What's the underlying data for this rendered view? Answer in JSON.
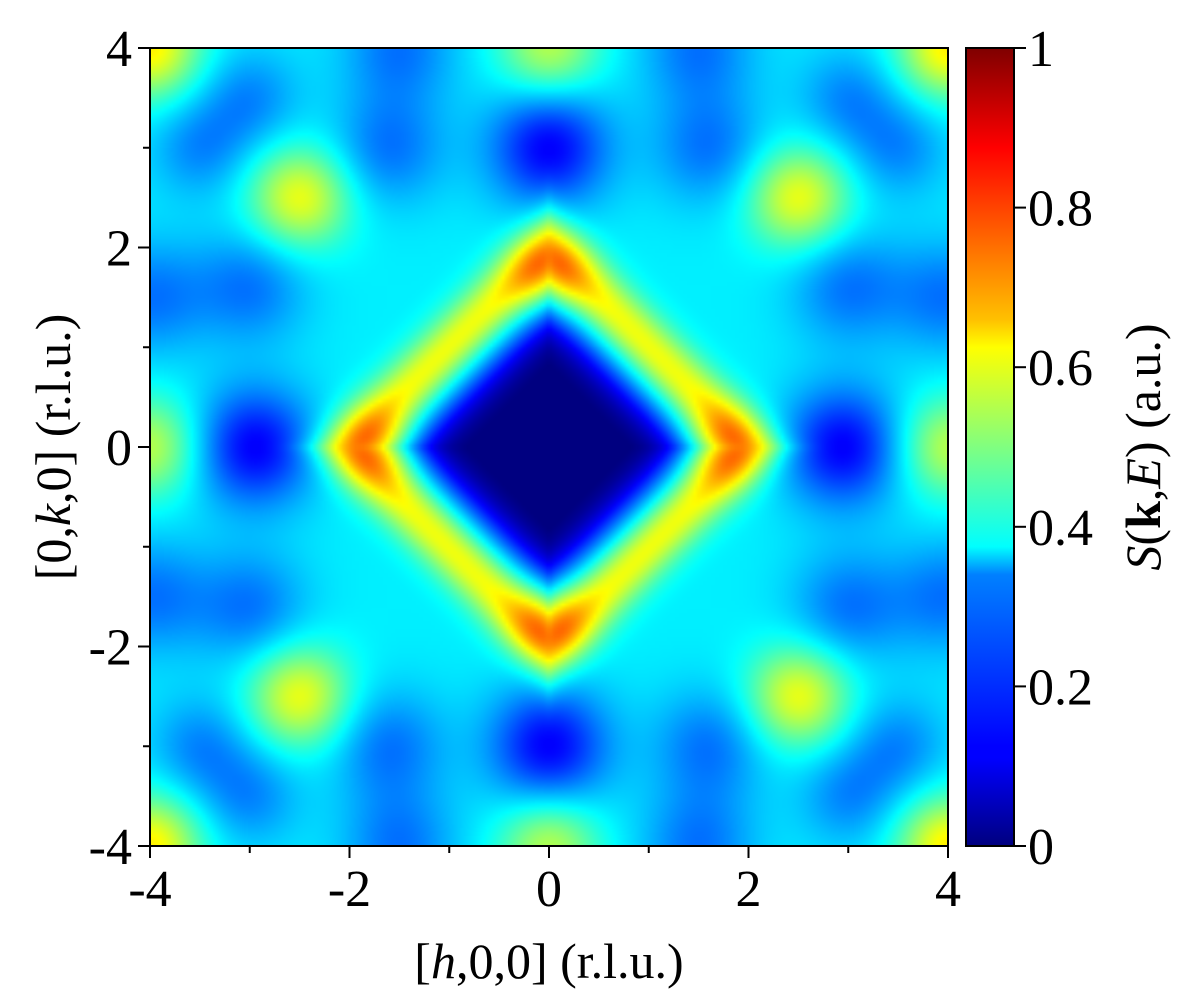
{
  "chart_data": {
    "type": "heatmap",
    "title": "",
    "xlabel": {
      "prefix": "[",
      "var": "h",
      "suffix": ",0,0] (r.l.u.)"
    },
    "ylabel": {
      "prefix": "[0,",
      "var": "k",
      "suffix": ",0] (r.l.u.)"
    },
    "colorbar_label": {
      "s": "S",
      "open": "(",
      "k": "k",
      "comma": ",",
      "e": "E",
      "close": ")",
      "unit": " (a.u.)"
    },
    "xlim": [
      -4,
      4
    ],
    "ylim": [
      -4,
      4
    ],
    "x_ticks": [
      "-4",
      "-2",
      "0",
      "2",
      "4"
    ],
    "y_ticks": [
      "-4",
      "-2",
      "0",
      "2",
      "4"
    ],
    "x_tick_values": [
      -4,
      -2,
      0,
      2,
      4
    ],
    "y_tick_values": [
      -4,
      -2,
      0,
      2,
      4
    ],
    "minor_tick_values": [
      -3,
      -1,
      1,
      3
    ],
    "colorbar": {
      "range": [
        0,
        1
      ],
      "ticks": [
        "0",
        "0.2",
        "0.4",
        "0.6",
        "0.8",
        "1"
      ],
      "tick_values": [
        0,
        0.2,
        0.4,
        0.6,
        0.8,
        1.0
      ],
      "colormap": "jet"
    },
    "features": [
      {
        "name": "central minimum",
        "h": 0,
        "k": 0,
        "value": 0.02
      },
      {
        "name": "ring arcs",
        "positions": [
          [
            1.75,
            0
          ],
          [
            -1.75,
            0
          ],
          [
            0,
            1.75
          ],
          [
            0,
            -1.75
          ]
        ],
        "value": 0.68
      },
      {
        "name": "diagonal maxima",
        "positions": [
          [
            2.5,
            2.5
          ],
          [
            -2.5,
            2.5
          ],
          [
            2.5,
            -2.5
          ],
          [
            -2.5,
            -2.5
          ]
        ],
        "value": 0.6
      },
      {
        "name": "corner maxima",
        "positions": [
          [
            4,
            4
          ],
          [
            -4,
            4
          ],
          [
            4,
            -4
          ],
          [
            -4,
            -4
          ]
        ],
        "value": 0.6
      },
      {
        "name": "edge maxima",
        "positions": [
          [
            4,
            0
          ],
          [
            -4,
            0
          ],
          [
            0,
            4
          ],
          [
            0,
            -4
          ]
        ],
        "value": 0.55
      },
      {
        "name": "minima near zone edges",
        "positions": [
          [
            3,
            0
          ],
          [
            -3,
            0
          ],
          [
            0,
            3
          ],
          [
            0,
            -3
          ]
        ],
        "value": 0.1
      }
    ]
  }
}
